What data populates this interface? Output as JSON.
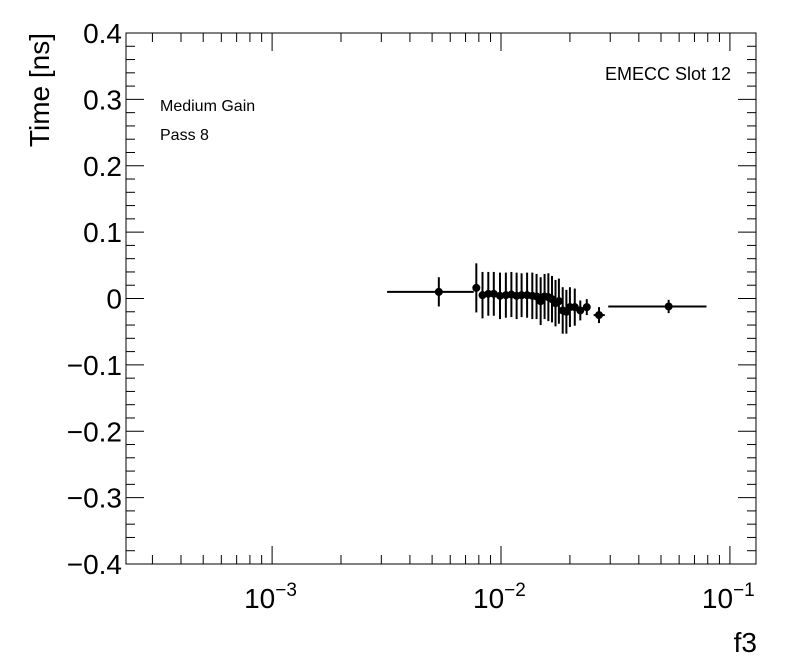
{
  "chart_data": {
    "type": "scatter",
    "xlabel": "f3",
    "ylabel": "Time [ns]",
    "x_scale": "log",
    "xlim": [
      0.00023,
      0.13
    ],
    "ylim": [
      -0.4,
      0.4
    ],
    "grid": false,
    "annotations": {
      "top_right": "EMECC Slot 12",
      "top_left_line1": "Medium Gain",
      "top_left_line2": "Pass 8"
    },
    "x_tick_labels": [
      {
        "base": "10",
        "exp": "−3",
        "value": 0.001
      },
      {
        "base": "10",
        "exp": "−2",
        "value": 0.01
      },
      {
        "base": "10",
        "exp": "−1",
        "value": 0.1
      }
    ],
    "y_tick_labels": [
      "0.4",
      "0.3",
      "0.2",
      "0.1",
      "0",
      "−0.1",
      "−0.2",
      "−0.3",
      "−0.4"
    ],
    "y_tick_values": [
      0.4,
      0.3,
      0.2,
      0.1,
      0,
      -0.1,
      -0.2,
      -0.3,
      -0.4
    ],
    "points": [
      {
        "x": 0.00535,
        "y": 0.01,
        "yerr": 0.022,
        "xlo": 0.00318,
        "xhi": 0.0076
      },
      {
        "x": 0.0078,
        "y": 0.016,
        "yerr": 0.037
      },
      {
        "x": 0.0083,
        "y": 0.005,
        "yerr": 0.035
      },
      {
        "x": 0.0088,
        "y": 0.007,
        "yerr": 0.033
      },
      {
        "x": 0.0093,
        "y": 0.007,
        "yerr": 0.033
      },
      {
        "x": 0.0099,
        "y": 0.004,
        "yerr": 0.035
      },
      {
        "x": 0.0105,
        "y": 0.005,
        "yerr": 0.034
      },
      {
        "x": 0.0111,
        "y": 0.006,
        "yerr": 0.034
      },
      {
        "x": 0.0117,
        "y": 0.004,
        "yerr": 0.035
      },
      {
        "x": 0.0123,
        "y": 0.005,
        "yerr": 0.033
      },
      {
        "x": 0.013,
        "y": 0.005,
        "yerr": 0.034
      },
      {
        "x": 0.0137,
        "y": 0.004,
        "yerr": 0.035
      },
      {
        "x": 0.0143,
        "y": 0.003,
        "yerr": 0.034
      },
      {
        "x": 0.0149,
        "y": -0.004,
        "yerr": 0.036
      },
      {
        "x": 0.0155,
        "y": 0.003,
        "yerr": 0.034
      },
      {
        "x": 0.0161,
        "y": 0.002,
        "yerr": 0.036
      },
      {
        "x": 0.0167,
        "y": -0.001,
        "yerr": 0.035
      },
      {
        "x": 0.0173,
        "y": -0.007,
        "yerr": 0.035
      },
      {
        "x": 0.0179,
        "y": -0.004,
        "yerr": 0.034
      },
      {
        "x": 0.0186,
        "y": -0.018,
        "yerr": 0.035
      },
      {
        "x": 0.0193,
        "y": -0.02,
        "yerr": 0.033
      },
      {
        "x": 0.02,
        "y": -0.013,
        "yerr": 0.03
      },
      {
        "x": 0.021,
        "y": -0.013,
        "yerr": 0.028
      },
      {
        "x": 0.0222,
        "y": -0.018,
        "yerr": 0.015
      },
      {
        "x": 0.0237,
        "y": -0.013,
        "yerr": 0.012
      },
      {
        "x": 0.0268,
        "y": -0.025,
        "yerr": 0.012,
        "xlo": 0.0254,
        "xhi": 0.0284
      },
      {
        "x": 0.054,
        "y": -0.012,
        "yerr": 0.01,
        "xlo": 0.0294,
        "xhi": 0.079
      }
    ]
  }
}
